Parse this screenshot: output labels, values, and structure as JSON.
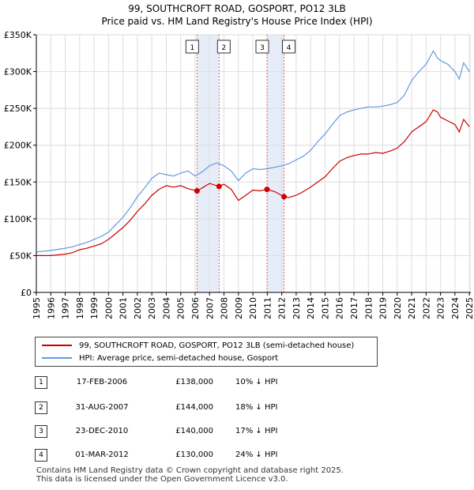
{
  "chart_data": {
    "type": "line",
    "title": "99, SOUTHCROFT ROAD, GOSPORT, PO12 3LB",
    "subtitle": "Price paid vs. HM Land Registry's House Price Index (HPI)",
    "xlabel": "",
    "ylabel": "",
    "xlim": [
      1995,
      2025.1
    ],
    "ylim": [
      0,
      350000
    ],
    "y_ticks": [
      {
        "value": 0,
        "label": "£0"
      },
      {
        "value": 50000,
        "label": "£50K"
      },
      {
        "value": 100000,
        "label": "£100K"
      },
      {
        "value": 150000,
        "label": "£150K"
      },
      {
        "value": 200000,
        "label": "£200K"
      },
      {
        "value": 250000,
        "label": "£250K"
      },
      {
        "value": 300000,
        "label": "£300K"
      },
      {
        "value": 350000,
        "label": "£350K"
      }
    ],
    "x_ticks": [
      "1995",
      "1996",
      "1997",
      "1998",
      "1999",
      "2000",
      "2001",
      "2002",
      "2003",
      "2004",
      "2005",
      "2006",
      "2007",
      "2008",
      "2009",
      "2010",
      "2011",
      "2012",
      "2013",
      "2014",
      "2015",
      "2016",
      "2017",
      "2018",
      "2019",
      "2020",
      "2021",
      "2022",
      "2023",
      "2024",
      "2025"
    ],
    "grid": true,
    "series": [
      {
        "name": "99, SOUTHCROFT ROAD, GOSPORT, PO12 3LB (semi-detached house)",
        "color": "#cc0000",
        "x": [
          1995.0,
          1996.0,
          1997.0,
          1997.5,
          1998.0,
          1998.5,
          1999.0,
          1999.5,
          2000.0,
          2000.5,
          2001.0,
          2001.5,
          2002.0,
          2002.5,
          2003.0,
          2003.5,
          2004.0,
          2004.5,
          2005.0,
          2005.5,
          2006.13,
          2006.5,
          2007.0,
          2007.66,
          2008.0,
          2008.5,
          2009.0,
          2009.5,
          2010.0,
          2010.5,
          2010.98,
          2011.5,
          2012.16,
          2012.5,
          2013.0,
          2013.5,
          2014.0,
          2014.5,
          2015.0,
          2015.5,
          2016.0,
          2016.5,
          2017.0,
          2017.5,
          2018.0,
          2018.5,
          2019.0,
          2019.5,
          2020.0,
          2020.5,
          2021.0,
          2021.5,
          2022.0,
          2022.5,
          2022.8,
          2023.0,
          2023.5,
          2024.0,
          2024.3,
          2024.6,
          2025.0
        ],
        "values": [
          50000,
          50000,
          52000,
          54000,
          58000,
          60000,
          63000,
          66000,
          72000,
          80000,
          88000,
          98000,
          110000,
          120000,
          132000,
          140000,
          145000,
          143000,
          145000,
          141000,
          138000,
          142000,
          148000,
          144000,
          147000,
          140000,
          125000,
          132000,
          139000,
          138000,
          140000,
          137000,
          130000,
          129000,
          132000,
          137000,
          143000,
          150000,
          157000,
          168000,
          178000,
          183000,
          186000,
          188000,
          188000,
          190000,
          189000,
          192000,
          196000,
          205000,
          218000,
          225000,
          232000,
          248000,
          245000,
          238000,
          233000,
          228000,
          218000,
          235000,
          225000
        ]
      },
      {
        "name": "HPI: Average price, semi-detached house, Gosport",
        "color": "#6699dd",
        "x": [
          1995.0,
          1996.0,
          1997.0,
          1997.5,
          1998.0,
          1998.5,
          1999.0,
          1999.5,
          2000.0,
          2000.5,
          2001.0,
          2001.5,
          2002.0,
          2002.5,
          2003.0,
          2003.5,
          2004.0,
          2004.5,
          2005.0,
          2005.5,
          2006.0,
          2006.5,
          2007.0,
          2007.5,
          2008.0,
          2008.5,
          2009.0,
          2009.5,
          2010.0,
          2010.5,
          2011.0,
          2011.5,
          2012.0,
          2012.5,
          2013.0,
          2013.5,
          2014.0,
          2014.5,
          2015.0,
          2015.5,
          2016.0,
          2016.5,
          2017.0,
          2017.5,
          2018.0,
          2018.5,
          2019.0,
          2019.5,
          2020.0,
          2020.5,
          2021.0,
          2021.5,
          2022.0,
          2022.5,
          2022.8,
          2023.0,
          2023.5,
          2024.0,
          2024.3,
          2024.6,
          2025.0
        ],
        "values": [
          55000,
          57000,
          60000,
          62000,
          65000,
          68000,
          72000,
          76000,
          82000,
          92000,
          102000,
          115000,
          130000,
          142000,
          155000,
          162000,
          160000,
          158000,
          162000,
          165000,
          158000,
          164000,
          172000,
          176000,
          172000,
          165000,
          152000,
          162000,
          168000,
          167000,
          168000,
          170000,
          172000,
          175000,
          180000,
          185000,
          193000,
          205000,
          215000,
          228000,
          240000,
          245000,
          248000,
          250000,
          252000,
          252000,
          253000,
          255000,
          258000,
          268000,
          288000,
          300000,
          310000,
          328000,
          318000,
          315000,
          310000,
          300000,
          290000,
          312000,
          300000
        ]
      }
    ],
    "transactions": [
      {
        "num": "1",
        "date": "17-FEB-2006",
        "x": 2006.13,
        "price": 138000,
        "price_label": "£138,000",
        "hpi": "10% ↓ HPI"
      },
      {
        "num": "2",
        "date": "31-AUG-2007",
        "x": 2007.66,
        "price": 144000,
        "price_label": "£144,000",
        "hpi": "18% ↓ HPI"
      },
      {
        "num": "3",
        "date": "23-DEC-2010",
        "x": 2010.98,
        "price": 140000,
        "price_label": "£140,000",
        "hpi": "17% ↓ HPI"
      },
      {
        "num": "4",
        "date": "01-MAR-2012",
        "x": 2012.16,
        "price": 130000,
        "price_label": "£130,000",
        "hpi": "24% ↓ HPI"
      }
    ],
    "legend_position": "bottom",
    "colors": {
      "grid": "#dddddd",
      "shade": "#dde6f5",
      "axis": "#000000",
      "marker": "#cc0000",
      "vline": "#dd6666"
    }
  },
  "footer": {
    "line1": "Contains HM Land Registry data © Crown copyright and database right 2025.",
    "line2": "This data is licensed under the Open Government Licence v3.0."
  }
}
